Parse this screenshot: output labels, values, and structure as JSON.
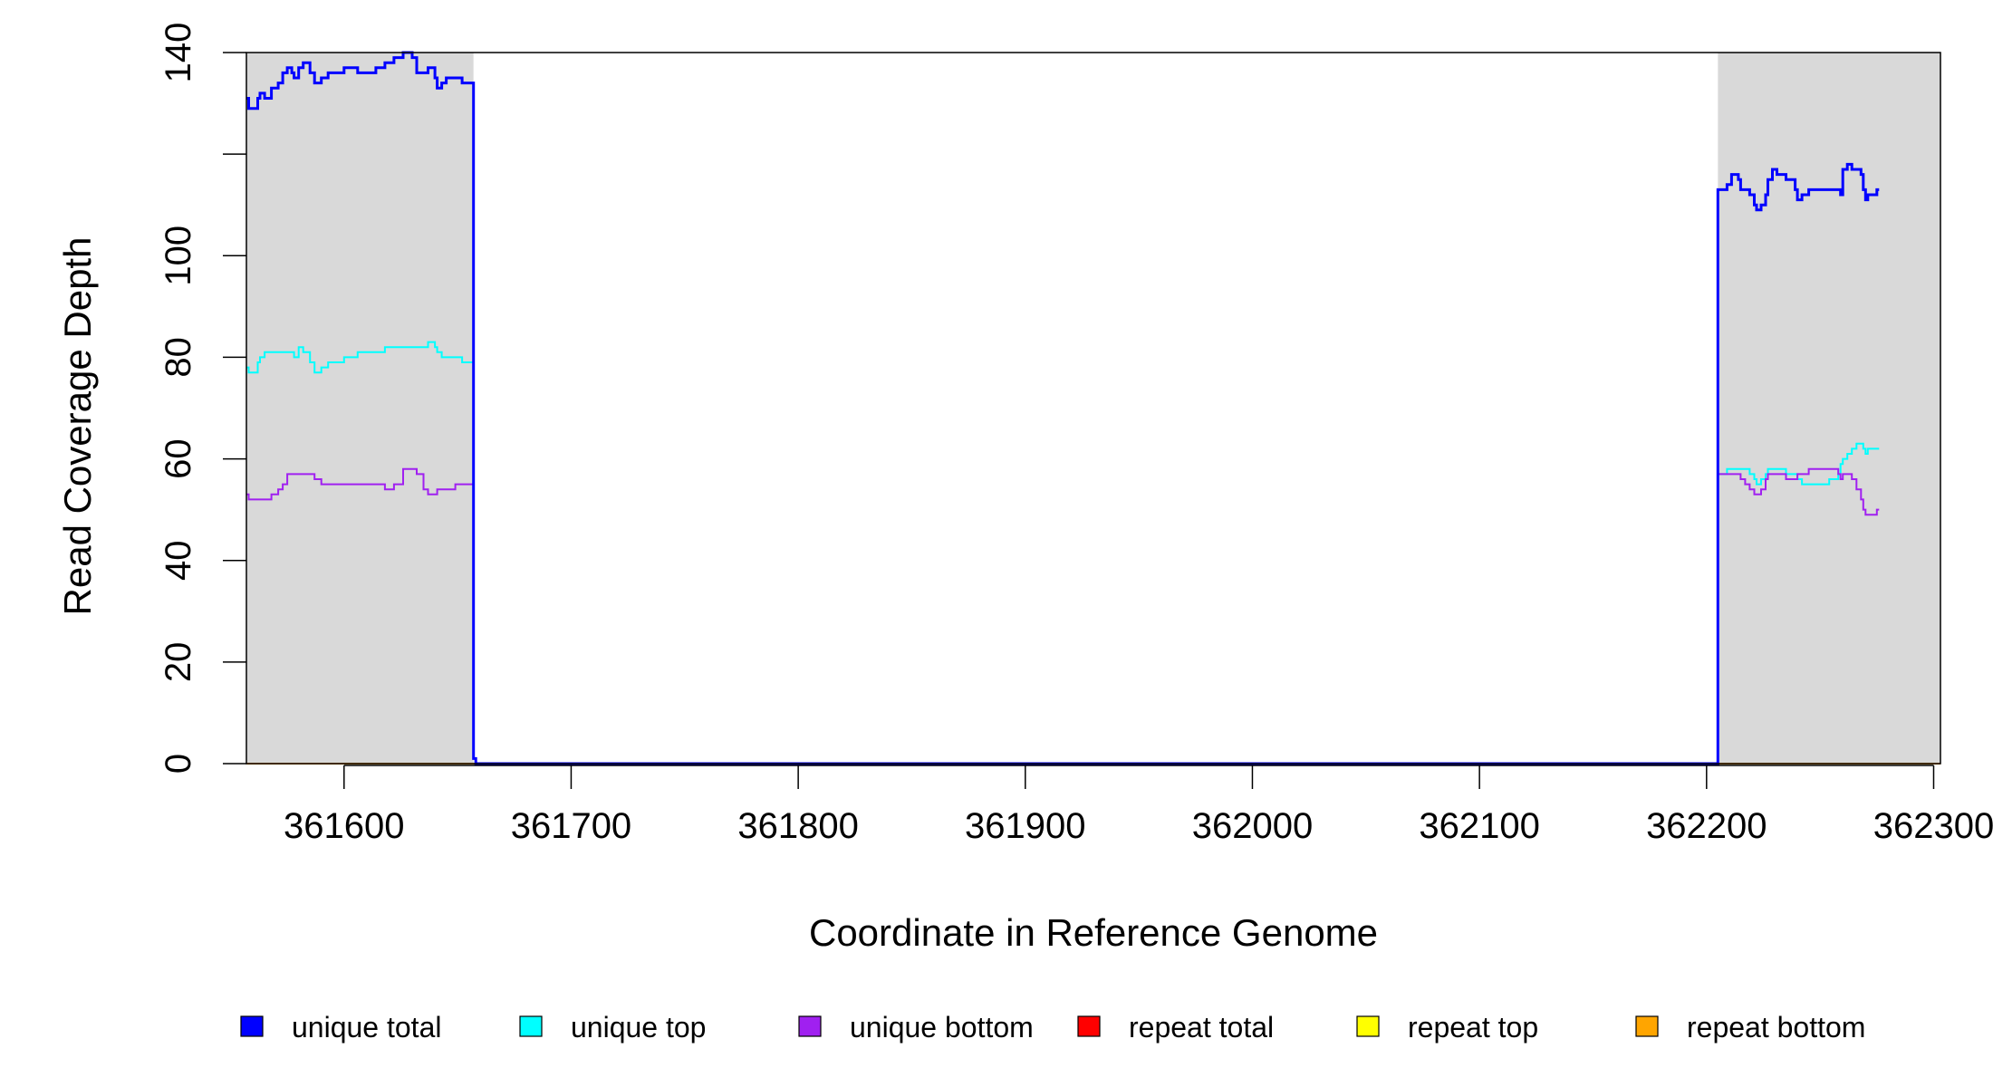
{
  "chart_data": {
    "type": "line",
    "title": "",
    "xlabel": "Coordinate in Reference Genome",
    "ylabel": "Read Coverage Depth",
    "xlim": [
      361557,
      362303
    ],
    "ylim": [
      0,
      140
    ],
    "x_ticks": [
      361600,
      361700,
      361800,
      361900,
      362000,
      362100,
      362200,
      362300
    ],
    "x_tick_labels": [
      "361600",
      "361700",
      "361800",
      "361900",
      "362000",
      "362100",
      "362200",
      "362300"
    ],
    "y_ticks": [
      0,
      20,
      40,
      60,
      80,
      100,
      120,
      140
    ],
    "y_tick_labels": [
      "0",
      "20",
      "40",
      "60",
      "80",
      "100",
      "",
      "140"
    ],
    "shaded_regions": [
      [
        361557,
        361657
      ],
      [
        362205,
        362303
      ]
    ],
    "shade_color": "#d9d9d9",
    "grid": false,
    "legend_position": "bottom",
    "series": [
      {
        "name": "unique total",
        "color": "#0000ff",
        "points": [
          [
            361557,
            131
          ],
          [
            361558,
            129
          ],
          [
            361561,
            129
          ],
          [
            361562,
            131
          ],
          [
            361563,
            132
          ],
          [
            361565,
            131
          ],
          [
            361568,
            133
          ],
          [
            361571,
            134
          ],
          [
            361573,
            136
          ],
          [
            361575,
            137
          ],
          [
            361577,
            136
          ],
          [
            361578,
            135
          ],
          [
            361580,
            137
          ],
          [
            361582,
            138
          ],
          [
            361585,
            136
          ],
          [
            361587,
            134
          ],
          [
            361590,
            135
          ],
          [
            361593,
            136
          ],
          [
            361597,
            136
          ],
          [
            361600,
            137
          ],
          [
            361606,
            136
          ],
          [
            361610,
            136
          ],
          [
            361614,
            137
          ],
          [
            361618,
            138
          ],
          [
            361622,
            139
          ],
          [
            361625,
            139
          ],
          [
            361626,
            140
          ],
          [
            361630,
            139
          ],
          [
            361632,
            136
          ],
          [
            361635,
            136
          ],
          [
            361637,
            137
          ],
          [
            361640,
            135
          ],
          [
            361641,
            133
          ],
          [
            361643,
            134
          ],
          [
            361645,
            135
          ],
          [
            361649,
            135
          ],
          [
            361652,
            134
          ],
          [
            361655,
            134
          ],
          [
            361656,
            134
          ],
          [
            361657,
            1
          ],
          [
            361658,
            0
          ],
          [
            362204,
            0
          ],
          [
            362205,
            113
          ],
          [
            362209,
            114
          ],
          [
            362211,
            116
          ],
          [
            362214,
            115
          ],
          [
            362215,
            113
          ],
          [
            362217,
            113
          ],
          [
            362219,
            112
          ],
          [
            362221,
            110
          ],
          [
            362222,
            109
          ],
          [
            362224,
            110
          ],
          [
            362226,
            112
          ],
          [
            362227,
            115
          ],
          [
            362229,
            117
          ],
          [
            362231,
            116
          ],
          [
            362235,
            115
          ],
          [
            362239,
            113
          ],
          [
            362240,
            111
          ],
          [
            362242,
            112
          ],
          [
            362245,
            113
          ],
          [
            362247,
            113
          ],
          [
            362250,
            113
          ],
          [
            362254,
            113
          ],
          [
            362258,
            113
          ],
          [
            362259,
            112
          ],
          [
            362260,
            117
          ],
          [
            362262,
            118
          ],
          [
            362264,
            117
          ],
          [
            362266,
            117
          ],
          [
            362268,
            116
          ],
          [
            362269,
            113
          ],
          [
            362270,
            111
          ],
          [
            362271,
            112
          ],
          [
            362273,
            112
          ],
          [
            362275,
            113
          ],
          [
            362276,
            113
          ]
        ]
      },
      {
        "name": "unique top",
        "color": "#00ffff",
        "points": [
          [
            361557,
            78
          ],
          [
            361558,
            77
          ],
          [
            361561,
            77
          ],
          [
            361562,
            79
          ],
          [
            361563,
            80
          ],
          [
            361565,
            81
          ],
          [
            361568,
            81
          ],
          [
            361571,
            81
          ],
          [
            361573,
            81
          ],
          [
            361575,
            81
          ],
          [
            361577,
            81
          ],
          [
            361578,
            80
          ],
          [
            361580,
            82
          ],
          [
            361582,
            81
          ],
          [
            361585,
            79
          ],
          [
            361587,
            77
          ],
          [
            361590,
            78
          ],
          [
            361593,
            79
          ],
          [
            361597,
            79
          ],
          [
            361600,
            80
          ],
          [
            361606,
            81
          ],
          [
            361610,
            81
          ],
          [
            361614,
            81
          ],
          [
            361618,
            82
          ],
          [
            361622,
            82
          ],
          [
            361625,
            82
          ],
          [
            361626,
            82
          ],
          [
            361630,
            82
          ],
          [
            361632,
            82
          ],
          [
            361635,
            82
          ],
          [
            361637,
            83
          ],
          [
            361640,
            82
          ],
          [
            361641,
            81
          ],
          [
            361643,
            80
          ],
          [
            361645,
            80
          ],
          [
            361649,
            80
          ],
          [
            361652,
            79
          ],
          [
            361655,
            79
          ],
          [
            361656,
            79
          ],
          [
            361657,
            1
          ],
          [
            361658,
            0
          ],
          [
            362204,
            0
          ],
          [
            362205,
            57
          ],
          [
            362209,
            58
          ],
          [
            362211,
            58
          ],
          [
            362214,
            58
          ],
          [
            362215,
            58
          ],
          [
            362217,
            58
          ],
          [
            362219,
            57
          ],
          [
            362221,
            56
          ],
          [
            362222,
            55
          ],
          [
            362224,
            56
          ],
          [
            362226,
            57
          ],
          [
            362227,
            58
          ],
          [
            362229,
            58
          ],
          [
            362231,
            58
          ],
          [
            362235,
            57
          ],
          [
            362239,
            57
          ],
          [
            362240,
            56
          ],
          [
            362242,
            55
          ],
          [
            362245,
            55
          ],
          [
            362247,
            55
          ],
          [
            362250,
            55
          ],
          [
            362254,
            56
          ],
          [
            362258,
            57
          ],
          [
            362259,
            59
          ],
          [
            362260,
            60
          ],
          [
            362262,
            61
          ],
          [
            362264,
            62
          ],
          [
            362266,
            63
          ],
          [
            362268,
            63
          ],
          [
            362269,
            62
          ],
          [
            362270,
            61
          ],
          [
            362271,
            62
          ],
          [
            362273,
            62
          ],
          [
            362275,
            62
          ],
          [
            362276,
            62
          ]
        ]
      },
      {
        "name": "unique bottom",
        "color": "#a020f0",
        "points": [
          [
            361557,
            53
          ],
          [
            361558,
            52
          ],
          [
            361561,
            52
          ],
          [
            361562,
            52
          ],
          [
            361563,
            52
          ],
          [
            361565,
            52
          ],
          [
            361568,
            53
          ],
          [
            361571,
            54
          ],
          [
            361573,
            55
          ],
          [
            361575,
            57
          ],
          [
            361577,
            57
          ],
          [
            361578,
            57
          ],
          [
            361580,
            57
          ],
          [
            361582,
            57
          ],
          [
            361585,
            57
          ],
          [
            361587,
            56
          ],
          [
            361590,
            55
          ],
          [
            361593,
            55
          ],
          [
            361597,
            55
          ],
          [
            361600,
            55
          ],
          [
            361606,
            55
          ],
          [
            361610,
            55
          ],
          [
            361614,
            55
          ],
          [
            361618,
            54
          ],
          [
            361622,
            55
          ],
          [
            361625,
            55
          ],
          [
            361626,
            58
          ],
          [
            361630,
            58
          ],
          [
            361632,
            57
          ],
          [
            361635,
            54
          ],
          [
            361637,
            53
          ],
          [
            361640,
            53
          ],
          [
            361641,
            54
          ],
          [
            361643,
            54
          ],
          [
            361645,
            54
          ],
          [
            361649,
            55
          ],
          [
            361652,
            55
          ],
          [
            361655,
            55
          ],
          [
            361656,
            55
          ],
          [
            361657,
            1
          ],
          [
            361658,
            0
          ],
          [
            362204,
            0
          ],
          [
            362205,
            57
          ],
          [
            362209,
            57
          ],
          [
            362211,
            57
          ],
          [
            362214,
            57
          ],
          [
            362215,
            56
          ],
          [
            362217,
            55
          ],
          [
            362219,
            54
          ],
          [
            362221,
            53
          ],
          [
            362222,
            53
          ],
          [
            362224,
            54
          ],
          [
            362226,
            56
          ],
          [
            362227,
            57
          ],
          [
            362229,
            57
          ],
          [
            362231,
            57
          ],
          [
            362235,
            56
          ],
          [
            362239,
            56
          ],
          [
            362240,
            57
          ],
          [
            362242,
            57
          ],
          [
            362245,
            58
          ],
          [
            362247,
            58
          ],
          [
            362250,
            58
          ],
          [
            362254,
            58
          ],
          [
            362258,
            57
          ],
          [
            362259,
            56
          ],
          [
            362260,
            57
          ],
          [
            362262,
            57
          ],
          [
            362264,
            56
          ],
          [
            362266,
            54
          ],
          [
            362268,
            52
          ],
          [
            362269,
            50
          ],
          [
            362270,
            49
          ],
          [
            362271,
            49
          ],
          [
            362273,
            49
          ],
          [
            362275,
            50
          ],
          [
            362276,
            50
          ]
        ]
      },
      {
        "name": "repeat total",
        "color": "#ff0000",
        "points": [
          [
            361557,
            0
          ],
          [
            362303,
            0
          ]
        ]
      },
      {
        "name": "repeat top",
        "color": "#ffff00",
        "points": [
          [
            361557,
            0
          ],
          [
            362303,
            0
          ]
        ]
      },
      {
        "name": "repeat bottom",
        "color": "#ffa500",
        "points": [
          [
            361557,
            0
          ],
          [
            362303,
            0
          ]
        ]
      }
    ]
  }
}
